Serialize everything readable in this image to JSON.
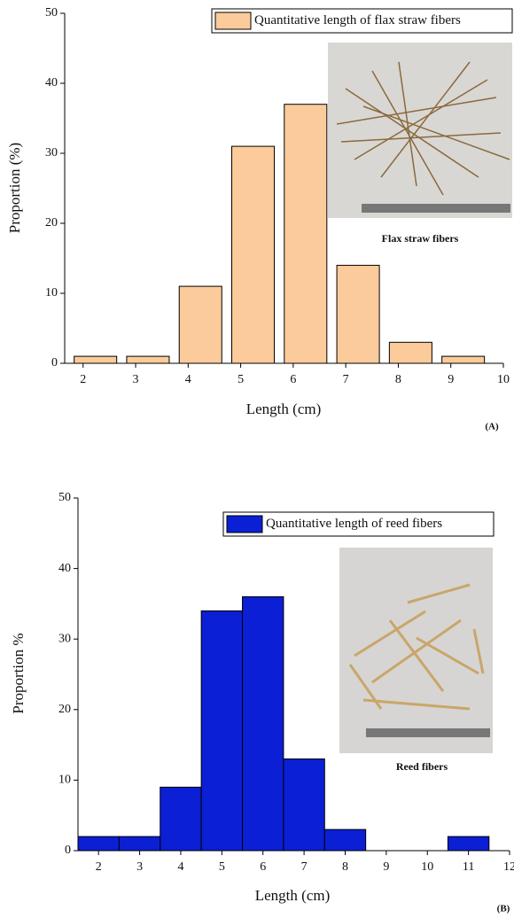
{
  "chart_data": [
    {
      "type": "histogram",
      "bins": [
        2,
        3,
        4,
        5,
        6,
        7,
        8,
        9,
        10
      ],
      "series": [
        {
          "name": "Quantitative length of flax straw fibers",
          "color": "#fccb9b",
          "values": [
            1,
            1,
            11,
            31,
            37,
            14,
            3,
            1
          ]
        }
      ],
      "xlim": [
        1.65,
        10
      ],
      "xticks": [
        2,
        3,
        4,
        5,
        6,
        7,
        8,
        9,
        10
      ],
      "ylim": [
        0,
        50
      ],
      "yticks": [
        0,
        10,
        20,
        30,
        40,
        50
      ],
      "xlabel": "Length (cm)",
      "ylabel": "Proportion (%)",
      "photo_caption": "Flax straw fibers",
      "panel_label": "(A)"
    },
    {
      "type": "histogram",
      "bins": [
        1.5,
        2.5,
        3.5,
        4.5,
        5.5,
        6.5,
        7.5,
        8.5,
        9.5,
        10.5,
        11.5
      ],
      "series": [
        {
          "name": "Quantitative length of reed fibers",
          "color": "#0b1fd4",
          "values": [
            2,
            2,
            9,
            34,
            36,
            13,
            3,
            0,
            0,
            2
          ]
        }
      ],
      "xlim": [
        1.5,
        12
      ],
      "xticks": [
        2,
        3,
        4,
        5,
        6,
        7,
        8,
        9,
        10,
        11,
        12
      ],
      "ylim": [
        0,
        50
      ],
      "yticks": [
        0,
        10,
        20,
        30,
        40,
        50
      ],
      "xlabel": "Length (cm)",
      "ylabel": "Proportion %",
      "photo_caption": "Reed fibers",
      "panel_label": "(B)"
    }
  ]
}
